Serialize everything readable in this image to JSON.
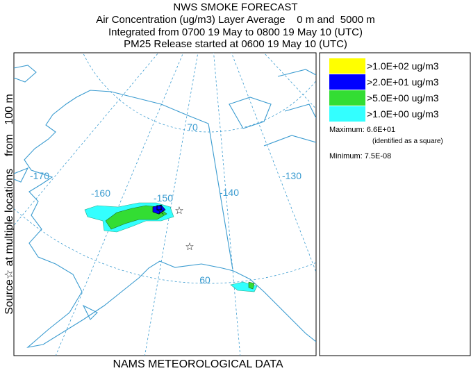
{
  "header": {
    "title": "NWS SMOKE FORECAST",
    "lines": [
      "Air Concentration (ug/m3) Layer Average    0 m and  5000 m",
      "Integrated from 0700 19 May to 0800 19 May 10 (UTC)",
      "PM25 Release started at 0600 19 May 10 (UTC)"
    ]
  },
  "side_label": "Source☆ at multiple locations    from   100 m",
  "footer": "NAMS METEOROLOGICAL DATA",
  "map_labels": {
    "longitudes": [
      "-170",
      "-160",
      "-150",
      "-140",
      "-130"
    ],
    "latitudes": [
      "70",
      "60"
    ]
  },
  "legend": {
    "items": [
      {
        "label": ">1.0E+02 ug/m3",
        "color": "#ffff00"
      },
      {
        "label": ">2.0E+01 ug/m3",
        "color": "#0000ff"
      },
      {
        "label": ">5.0E+00 ug/m3",
        "color": "#33dd33"
      },
      {
        "label": ">1.0E+00 ug/m3",
        "color": "#33ffff"
      }
    ],
    "maximum": "Maximum: 6.6E+01",
    "maximum_note": "(identified as a square)",
    "minimum": "Minimum: 7.5E-08"
  }
}
